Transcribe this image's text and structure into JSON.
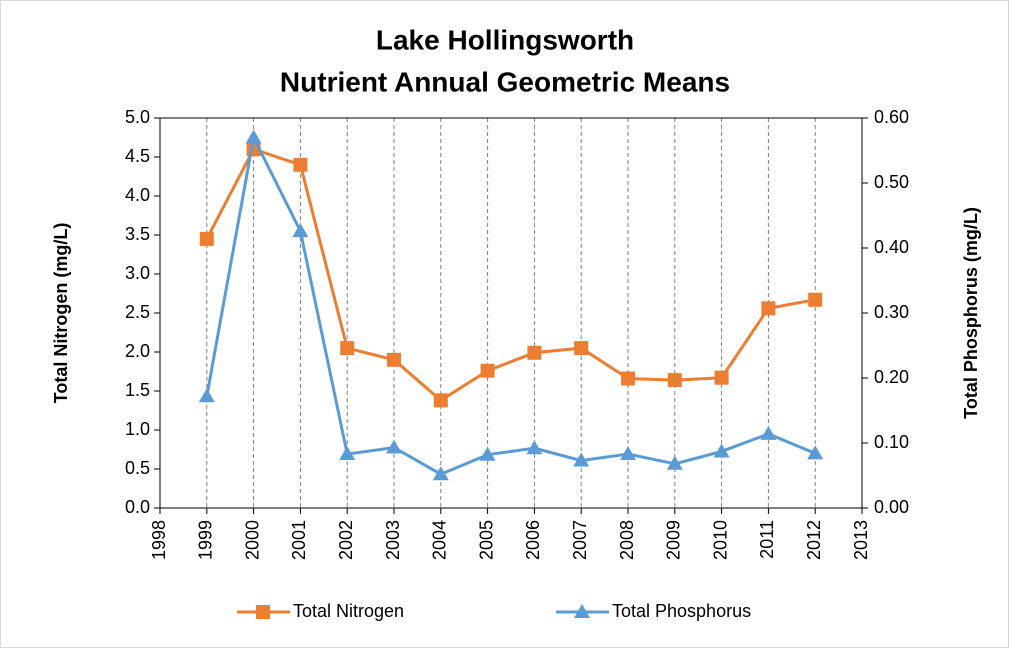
{
  "chart_data": {
    "type": "line",
    "title": "Lake Hollingsworth",
    "subtitle": "Nutrient Annual Geometric Means",
    "y_label": "Total Nitrogen (mg/L)",
    "y2_label": "Total Phosphorus (mg/L)",
    "x": [
      1999,
      2000,
      2001,
      2002,
      2003,
      2004,
      2005,
      2006,
      2007,
      2008,
      2009,
      2010,
      2011,
      2012
    ],
    "series": [
      {
        "name": "Total Nitrogen",
        "color": "#ed7d31",
        "marker": "square",
        "values": [
          3.45,
          4.6,
          4.4,
          2.05,
          1.9,
          1.38,
          1.76,
          1.99,
          2.05,
          1.66,
          1.64,
          1.67,
          2.56,
          2.67
        ]
      },
      {
        "name": "Total Phosphorus",
        "color": "#5b9bd5",
        "marker": "triangle",
        "axis": "y2",
        "values": [
          0.172,
          0.57,
          0.426,
          0.083,
          0.093,
          0.052,
          0.082,
          0.092,
          0.073,
          0.083,
          0.068,
          0.087,
          0.114,
          0.084
        ]
      }
    ],
    "xlim": [
      1998,
      2013
    ],
    "xticks": [
      1998,
      1999,
      2000,
      2001,
      2002,
      2003,
      2004,
      2005,
      2006,
      2007,
      2008,
      2009,
      2010,
      2011,
      2012,
      2013
    ],
    "ylim": [
      0,
      5
    ],
    "yticks": [
      {
        "value": 0,
        "label": "0.0"
      },
      {
        "value": 0.5,
        "label": "0.5"
      },
      {
        "value": 1,
        "label": "1.0"
      },
      {
        "value": 1.5,
        "label": "1.5"
      },
      {
        "value": 2,
        "label": "2.0"
      },
      {
        "value": 2.5,
        "label": "2.5"
      },
      {
        "value": 3,
        "label": "3.0"
      },
      {
        "value": 3.5,
        "label": "3.5"
      },
      {
        "value": 4,
        "label": "4.0"
      },
      {
        "value": 4.5,
        "label": "4.5"
      },
      {
        "value": 5,
        "label": "5.0"
      }
    ],
    "y2lim": [
      0,
      0.6
    ],
    "y2ticks": [
      {
        "value": 0,
        "label": "0.00"
      },
      {
        "value": 0.1,
        "label": "0.10"
      },
      {
        "value": 0.2,
        "label": "0.20"
      },
      {
        "value": 0.3,
        "label": "0.30"
      },
      {
        "value": 0.4,
        "label": "0.40"
      },
      {
        "value": 0.5,
        "label": "0.50"
      },
      {
        "value": 0.6,
        "label": "0.60"
      }
    ],
    "grid": "x",
    "legend": "bottom"
  }
}
